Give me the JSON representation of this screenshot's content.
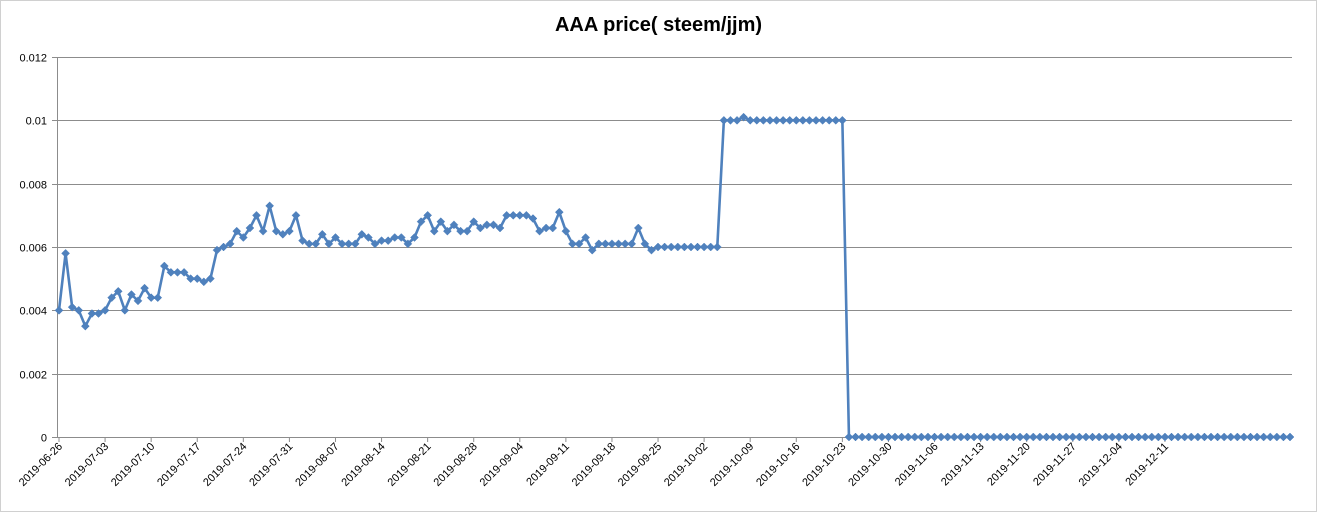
{
  "chart_data": {
    "type": "line",
    "title": "AAA price( steem/jjm)",
    "xlabel": "",
    "ylabel": "",
    "ylim": [
      0,
      0.012
    ],
    "yticks": [
      0,
      0.002,
      0.004,
      0.006,
      0.008,
      0.01,
      0.012
    ],
    "ytick_labels": [
      "0",
      "0.002",
      "0.004",
      "0.006",
      "0.008",
      "0.01",
      "0.012"
    ],
    "xtick_labels": [
      "2019-06-26",
      "2019-07-03",
      "2019-07-10",
      "2019-07-17",
      "2019-07-24",
      "2019-07-31",
      "2019-08-07",
      "2019-08-14",
      "2019-08-21",
      "2019-08-28",
      "2019-09-04",
      "2019-09-11",
      "2019-09-18",
      "2019-09-25",
      "2019-10-02",
      "2019-10-09",
      "2019-10-16",
      "2019-10-23",
      "2019-10-30",
      "2019-11-06",
      "2019-11-13",
      "2019-11-20",
      "2019-11-27",
      "2019-12-04",
      "2019-12-11"
    ],
    "grid": true,
    "legend": "none",
    "series_color": "#4f81bd",
    "series": [
      {
        "values": [
          0.004,
          0.0058,
          0.0041,
          0.004,
          0.0035,
          0.0039,
          0.0039,
          0.004,
          0.0044,
          0.0046,
          0.004,
          0.0045,
          0.0043,
          0.0047,
          0.0044,
          0.0044,
          0.0054,
          0.0052,
          0.0052,
          0.0052,
          0.005,
          0.005,
          0.0049,
          0.005,
          0.0059,
          0.006,
          0.0061,
          0.0065,
          0.0063,
          0.0066,
          0.007,
          0.0065,
          0.0073,
          0.0065,
          0.0064,
          0.0065,
          0.007,
          0.0062,
          0.0061,
          0.0061,
          0.0064,
          0.0061,
          0.0063,
          0.0061,
          0.0061,
          0.0061,
          0.0064,
          0.0063,
          0.0061,
          0.0062,
          0.0062,
          0.0063,
          0.0063,
          0.0061,
          0.0063,
          0.0068,
          0.007,
          0.0065,
          0.0068,
          0.0065,
          0.0067,
          0.0065,
          0.0065,
          0.0068,
          0.0066,
          0.0067,
          0.0067,
          0.0066,
          0.007,
          0.007,
          0.007,
          0.007,
          0.0069,
          0.0065,
          0.0066,
          0.0066,
          0.0071,
          0.0065,
          0.0061,
          0.0061,
          0.0063,
          0.0059,
          0.0061,
          0.0061,
          0.0061,
          0.0061,
          0.0061,
          0.0061,
          0.0066,
          0.0061,
          0.0059,
          0.006,
          0.006,
          0.006,
          0.006,
          0.006,
          0.006,
          0.006,
          0.006,
          0.006,
          0.006,
          0.01,
          0.01,
          0.01,
          0.0101,
          0.01,
          0.01,
          0.01,
          0.01,
          0.01,
          0.01,
          0.01,
          0.01,
          0.01,
          0.01,
          0.01,
          0.01,
          0.01,
          0.01,
          0.01,
          0,
          0,
          0,
          0,
          0,
          0,
          0,
          0,
          0,
          0,
          0,
          0,
          0,
          0,
          0,
          0,
          0,
          0,
          0,
          0,
          0,
          0,
          0,
          0,
          0,
          0,
          0,
          0,
          0,
          0,
          0,
          0,
          0,
          0,
          0,
          0,
          0,
          0,
          0,
          0,
          0,
          0,
          0,
          0,
          0,
          0,
          0,
          0,
          0,
          0,
          0,
          0,
          0,
          0,
          0,
          0,
          0,
          0,
          0,
          0,
          0,
          0,
          0,
          0,
          0,
          0,
          0,
          0
        ]
      }
    ]
  }
}
